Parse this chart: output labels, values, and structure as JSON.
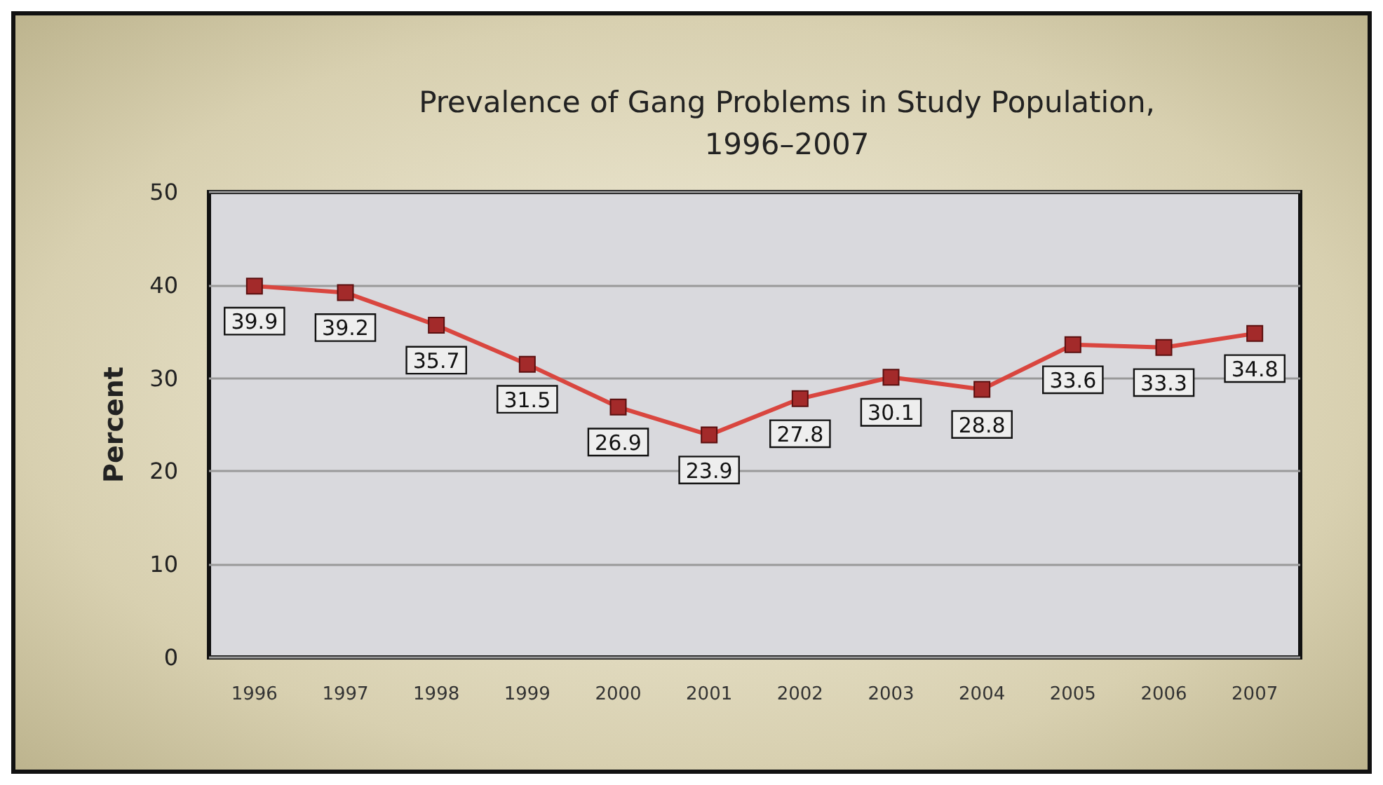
{
  "chart_data": {
    "type": "line",
    "title": "Prevalence of Gang Problems in Study Population,\n1996–2007",
    "ylabel": "Percent",
    "categories": [
      "1996",
      "1997",
      "1998",
      "1999",
      "2000",
      "2001",
      "2002",
      "2003",
      "2004",
      "2005",
      "2006",
      "2007"
    ],
    "series": [
      {
        "color": "#d9463f",
        "values": [
          39.9,
          39.2,
          35.7,
          31.5,
          26.9,
          23.9,
          27.8,
          30.1,
          28.8,
          33.6,
          33.3,
          34.8
        ]
      }
    ],
    "ylim": [
      0,
      50
    ],
    "yticks": [
      0,
      10,
      20,
      30,
      40,
      50
    ],
    "grid": "y",
    "marker": "square",
    "line_style": "solid",
    "data_labels": true
  }
}
